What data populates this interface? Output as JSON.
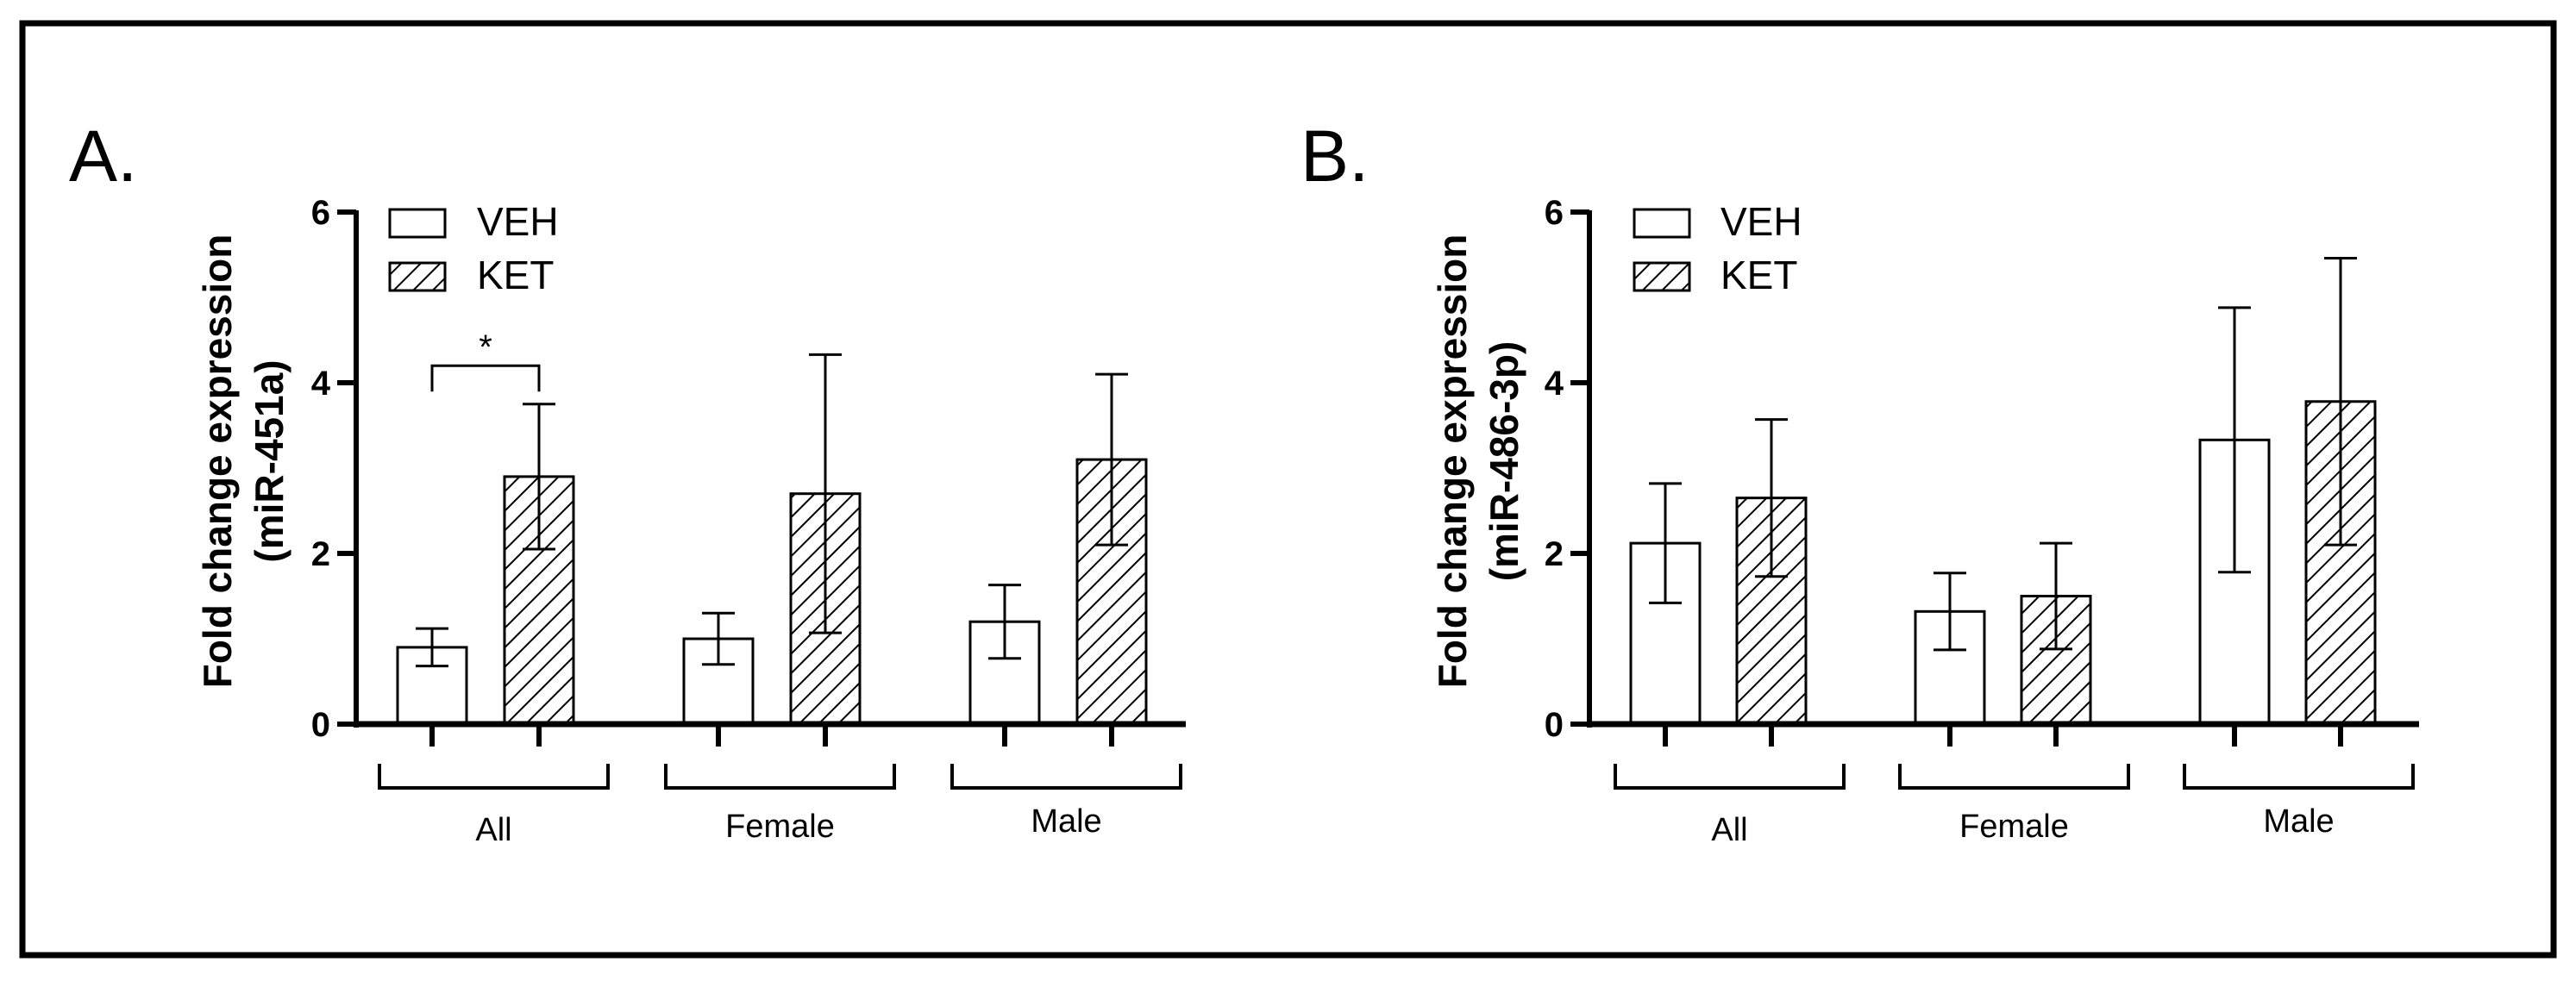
{
  "chart_data": [
    {
      "type": "bar",
      "panel_label": "A.",
      "ylabel_line1": "Fold change expression",
      "ylabel_line2": "(miR-451a)",
      "ylim": [
        0,
        6
      ],
      "yticks": [
        "0",
        "2",
        "4",
        "6"
      ],
      "categories": [
        "All",
        "Female",
        "Male"
      ],
      "series": [
        {
          "name": "VEH",
          "pattern": "open",
          "values": [
            0.9,
            1.0,
            1.2
          ],
          "error": [
            0.22,
            0.3,
            0.43
          ]
        },
        {
          "name": "KET",
          "pattern": "hatched",
          "values": [
            2.9,
            2.7,
            3.1
          ],
          "error": [
            0.85,
            1.63,
            1.0
          ]
        }
      ],
      "legend_position": "top-left",
      "annotations": [
        {
          "text": "*",
          "category": "All",
          "between": [
            "VEH",
            "KET"
          ],
          "level": 4.2
        }
      ]
    },
    {
      "type": "bar",
      "panel_label": "B.",
      "ylabel_line1": "Fold change expression",
      "ylabel_line2": "(miR-486-3p)",
      "ylim": [
        0,
        6
      ],
      "yticks": [
        "0",
        "2",
        "4",
        "6"
      ],
      "categories": [
        "All",
        "Female",
        "Male"
      ],
      "series": [
        {
          "name": "VEH",
          "pattern": "open",
          "values": [
            2.12,
            1.32,
            3.33
          ],
          "error": [
            0.7,
            0.45,
            1.55
          ]
        },
        {
          "name": "KET",
          "pattern": "hatched",
          "values": [
            2.65,
            1.5,
            3.78
          ],
          "error": [
            0.92,
            0.62,
            1.68
          ]
        }
      ],
      "legend_position": "top-left",
      "annotations": []
    }
  ]
}
